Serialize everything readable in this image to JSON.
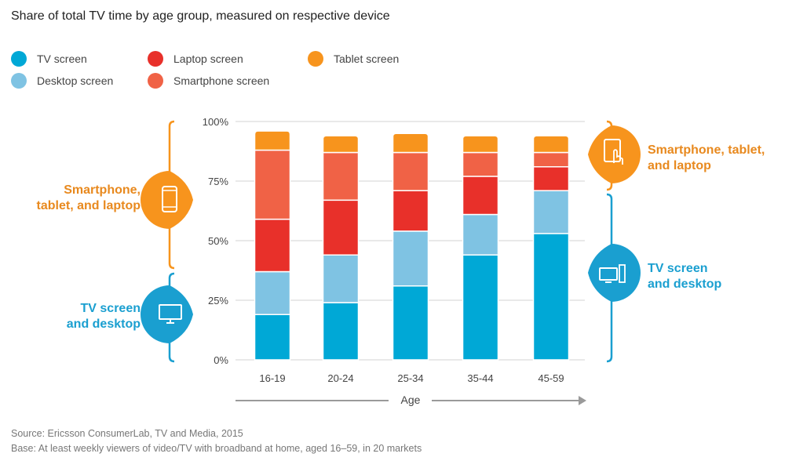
{
  "title": "Share of total TV time by age group, measured on respective device",
  "legend": [
    {
      "label": "TV screen",
      "color": "#00a8d6"
    },
    {
      "label": "Desktop screen",
      "color": "#7fc3e3"
    },
    {
      "label": "Laptop screen",
      "color": "#e8302a"
    },
    {
      "label": "Smartphone screen",
      "color": "#f06246"
    },
    {
      "label": "Tablet screen",
      "color": "#f7941d"
    }
  ],
  "chart_data": {
    "type": "bar",
    "stacked": true,
    "categories": [
      "16-19",
      "20-24",
      "25-34",
      "35-44",
      "45-59"
    ],
    "series": [
      {
        "name": "TV screen",
        "color": "#00a8d6",
        "values": [
          19,
          24,
          31,
          44,
          53
        ]
      },
      {
        "name": "Desktop screen",
        "color": "#7fc3e3",
        "values": [
          18,
          20,
          23,
          17,
          18
        ]
      },
      {
        "name": "Laptop screen",
        "color": "#e8302a",
        "values": [
          22,
          23,
          17,
          16,
          10
        ]
      },
      {
        "name": "Smartphone screen",
        "color": "#f06246",
        "values": [
          29,
          20,
          16,
          10,
          6
        ]
      },
      {
        "name": "Tablet screen",
        "color": "#f7941d",
        "values": [
          8,
          7,
          8,
          7,
          7
        ]
      }
    ],
    "yticks": [
      "0%",
      "25%",
      "50%",
      "75%",
      "100%"
    ],
    "ylim": [
      0,
      100
    ],
    "xlabel": "Age",
    "grid": true
  },
  "callouts": {
    "left_top": [
      "Smartphone,",
      "tablet, and laptop"
    ],
    "left_bottom": [
      "TV screen",
      "and desktop"
    ],
    "right_top": [
      "Smartphone, tablet,",
      "and laptop"
    ],
    "right_bottom": [
      "TV screen",
      "and desktop"
    ]
  },
  "callout_colors": {
    "orange": "#f7941d",
    "blue": "#1a9fd0"
  },
  "icons": [
    "smartphone-icon",
    "tv-icon",
    "tablet-touch-icon",
    "desktop-icon"
  ],
  "source": "Source: Ericsson ConsumerLab, TV and Media, 2015",
  "base": "Base: At least weekly viewers of video/TV with broadband at home, aged 16–59, in 20 markets"
}
